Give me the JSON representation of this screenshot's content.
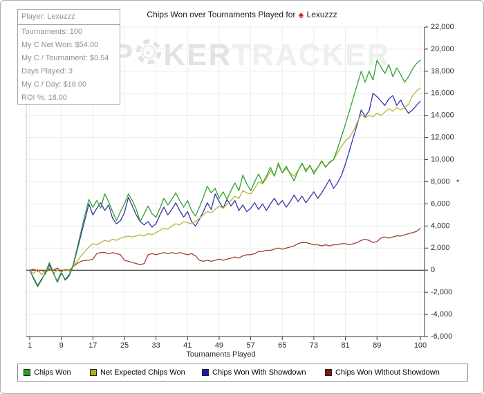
{
  "header": {
    "title_prefix": "Chips Won over Tournaments Played for",
    "player_name": "Lexuzzz",
    "spade_char": "♠"
  },
  "watermark": {
    "part1": "P",
    "part2": "KER",
    "part3": "TRACKER",
    "chip_icon": "poker-chip"
  },
  "info_box": {
    "player": "Player: Lexuzzz",
    "tournaments": "Tournaments: 100",
    "net_won": "My C Net Won: $54.00",
    "per_tournament": "My C / Tournament: $0.54",
    "days_played": "Days Played: 3",
    "per_day": "My C / Day: $18.00",
    "roi": "ROI %: 18.00"
  },
  "legend": {
    "items": [
      {
        "label": "Chips Won",
        "swatch_color": "#22a122"
      },
      {
        "label": "Net Expected Chips Won",
        "swatch_color": "#afaf1f"
      },
      {
        "label": "Chips Won With Showdown",
        "swatch_color": "#1a1aa6"
      },
      {
        "label": "Chips Won Without Showdown",
        "swatch_color": "#8f1010"
      }
    ]
  },
  "chart_data": {
    "type": "line",
    "title": "Chips Won over Tournaments Played for Lexuzzz",
    "xlabel": "Tournaments Played",
    "ylabel": "*",
    "xlim": [
      1,
      100
    ],
    "ylim": [
      -6000,
      22000
    ],
    "x_ticks": [
      1,
      9,
      17,
      25,
      33,
      41,
      49,
      57,
      65,
      73,
      81,
      89,
      100
    ],
    "y_ticks": [
      -6000,
      -4000,
      -2000,
      0,
      2000,
      4000,
      6000,
      8000,
      10000,
      12000,
      14000,
      16000,
      18000,
      20000,
      22000
    ],
    "grid": true,
    "legend_position": "bottom",
    "colors": {
      "grid": "#ececec",
      "axis": "#333333",
      "zero_line": "#1a1a1a",
      "left_border": "#c8c8c8"
    },
    "series": [
      {
        "name": "Chips Won Without Showdown",
        "color": "#a63a32",
        "values": [
          0,
          100,
          -100,
          0,
          -200,
          100,
          0,
          200,
          -100,
          100,
          0,
          300,
          600,
          800,
          900,
          900,
          1000,
          1500,
          1600,
          1600,
          1500,
          1600,
          1500,
          1400,
          900,
          800,
          700,
          600,
          500,
          600,
          1400,
          1500,
          1400,
          1500,
          1600,
          1500,
          1600,
          1500,
          1600,
          1500,
          1400,
          1500,
          1300,
          900,
          800,
          900,
          800,
          900,
          1000,
          900,
          1000,
          1100,
          1200,
          1100,
          1300,
          1400,
          1400,
          1500,
          1700,
          1700,
          1800,
          1800,
          1900,
          2000,
          1900,
          2000,
          2100,
          2200,
          2400,
          2500,
          2500,
          2400,
          2300,
          2300,
          2200,
          2300,
          2200,
          2300,
          2300,
          2400,
          2400,
          2300,
          2400,
          2500,
          2700,
          2800,
          2700,
          2500,
          2600,
          2900,
          3000,
          2900,
          3000,
          3100,
          3100,
          3200,
          3300,
          3400,
          3500,
          3800
        ]
      },
      {
        "name": "Chips Won With Showdown",
        "color": "#3333aa",
        "values": [
          0,
          -700,
          -1400,
          -800,
          -300,
          500,
          -300,
          -1000,
          -200,
          -900,
          -500,
          400,
          1800,
          3200,
          4600,
          6000,
          5000,
          5600,
          6100,
          5400,
          5900,
          4700,
          4200,
          4500,
          5200,
          6600,
          5800,
          5000,
          4400,
          4100,
          4400,
          3900,
          4200,
          5000,
          5700,
          5000,
          5500,
          6100,
          5400,
          4800,
          5300,
          4400,
          4000,
          4600,
          5300,
          6100,
          5500,
          6900,
          6200,
          5600,
          6400,
          5800,
          6300,
          5400,
          5900,
          5300,
          5600,
          6100,
          5500,
          6000,
          5400,
          6000,
          6500,
          5900,
          6300,
          5700,
          6200,
          6800,
          6200,
          6700,
          6100,
          6600,
          7100,
          6500,
          7000,
          7600,
          8200,
          7400,
          7900,
          8600,
          9600,
          10800,
          12000,
          13200,
          14500,
          13900,
          14400,
          16000,
          15700,
          15300,
          14900,
          15500,
          15800,
          14900,
          15400,
          14700,
          14200,
          14500,
          14900,
          15300
        ]
      },
      {
        "name": "Net Expected Chips Won",
        "color": "#b5b533",
        "values": [
          0,
          -300,
          100,
          -400,
          -100,
          200,
          -300,
          0,
          -200,
          100,
          -100,
          300,
          800,
          1300,
          1700,
          2100,
          2400,
          2300,
          2500,
          2700,
          2600,
          2800,
          2700,
          2900,
          3000,
          3100,
          3000,
          3100,
          3200,
          3100,
          3300,
          3200,
          3400,
          3600,
          3800,
          3700,
          4000,
          4200,
          4100,
          4400,
          4300,
          4200,
          4400,
          4700,
          5000,
          5300,
          5200,
          5500,
          5800,
          5600,
          6000,
          6300,
          6700,
          6500,
          7200,
          7000,
          6900,
          7400,
          8000,
          7800,
          8300,
          9000,
          8600,
          9500,
          8800,
          9200,
          8800,
          8500,
          9000,
          9600,
          9100,
          9400,
          8900,
          9300,
          9800,
          9400,
          9700,
          10000,
          10600,
          11200,
          11700,
          12000,
          12600,
          13400,
          14100,
          13800,
          14000,
          13900,
          14200,
          14000,
          14300,
          14600,
          14400,
          14700,
          14500,
          14700,
          15000,
          15800,
          16200,
          16500
        ]
      },
      {
        "name": "Chips Won",
        "color": "#2fa02f",
        "values": [
          0,
          -800,
          -1500,
          -900,
          -200,
          700,
          -200,
          -1100,
          -300,
          -800,
          -400,
          500,
          2000,
          3500,
          5000,
          6400,
          5700,
          6300,
          5600,
          6900,
          6200,
          5300,
          4500,
          5300,
          6000,
          6900,
          6300,
          5500,
          4400,
          5100,
          5800,
          5100,
          4800,
          5600,
          6500,
          5900,
          6400,
          7000,
          6300,
          5700,
          6300,
          5400,
          4900,
          5700,
          6600,
          7600,
          7000,
          7400,
          6500,
          7100,
          6400,
          7200,
          7900,
          7200,
          8600,
          7800,
          7200,
          8000,
          8700,
          7900,
          8500,
          9300,
          8500,
          9700,
          8800,
          9400,
          8700,
          8100,
          9000,
          9700,
          8900,
          9500,
          8700,
          9300,
          9900,
          9300,
          9800,
          10000,
          11000,
          12100,
          13200,
          14400,
          15600,
          16800,
          18000,
          17000,
          18000,
          17200,
          19000,
          18400,
          17800,
          18600,
          17500,
          18300,
          17700,
          17000,
          17500,
          18200,
          18700,
          19000
        ]
      }
    ]
  }
}
